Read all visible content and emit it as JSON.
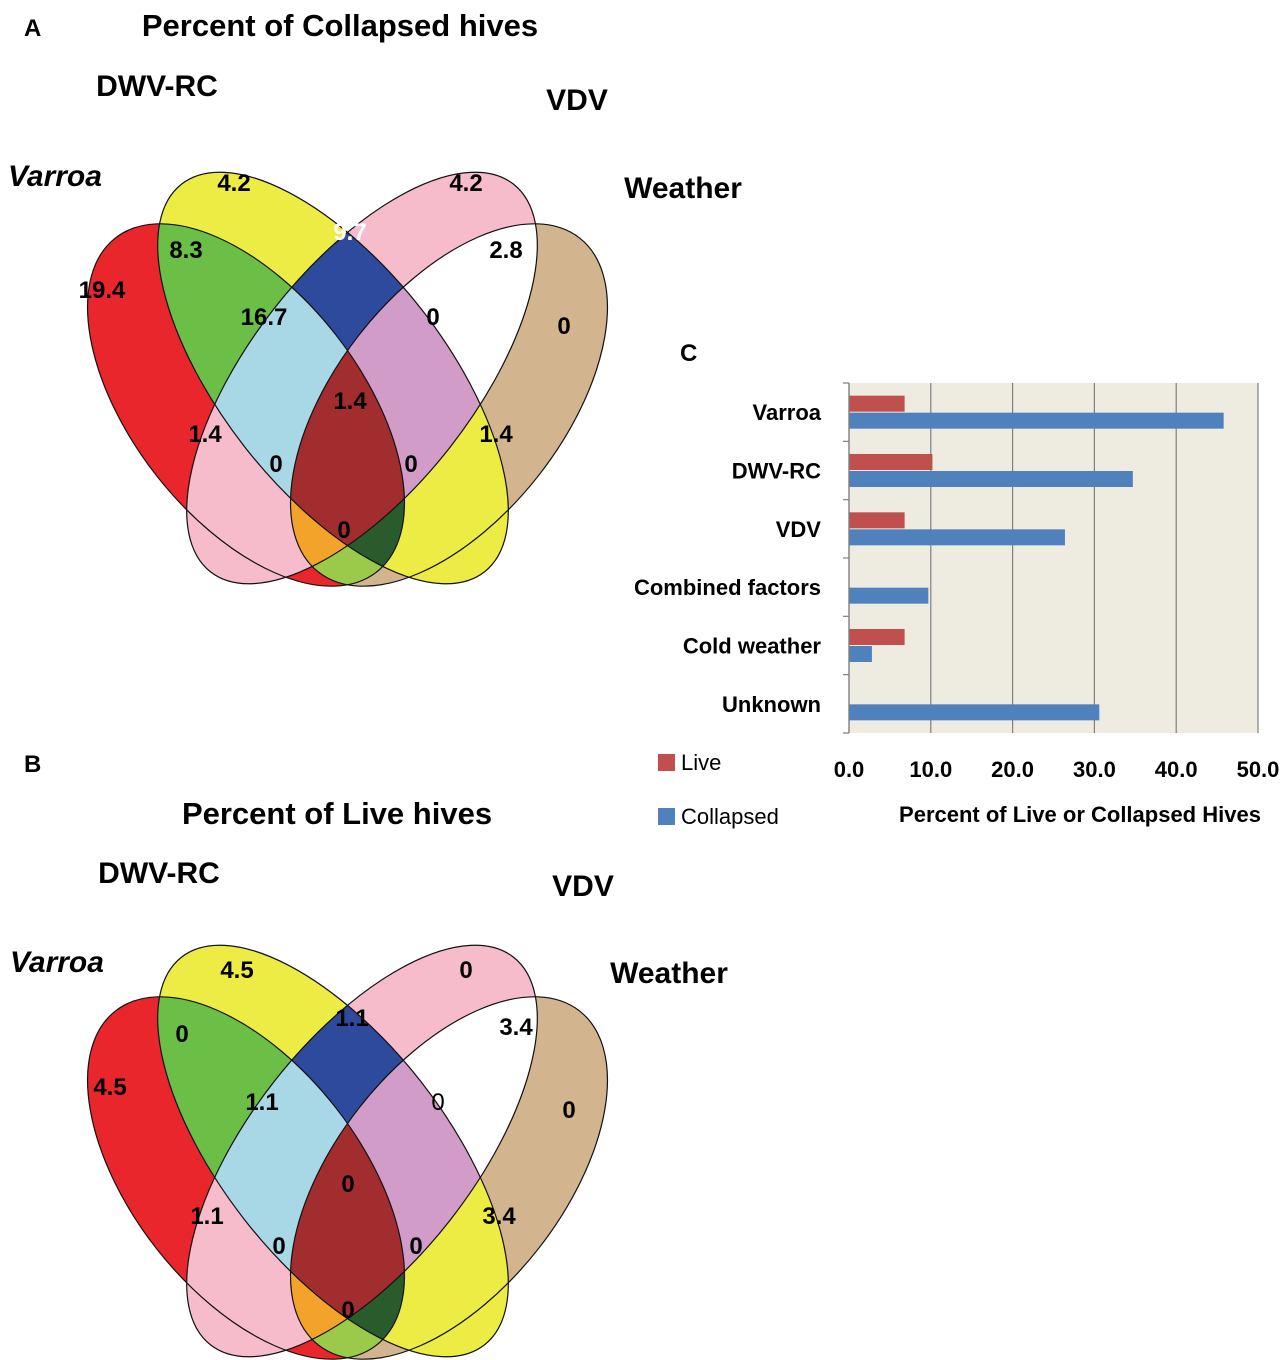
{
  "panels": {
    "a": {
      "letter": "A",
      "title": "Percent of Collapsed hives",
      "sets": [
        "Varroa",
        "DWV-RC",
        "VDV",
        "Weather"
      ],
      "values": {
        "varroa_only": "19.4",
        "dwv_only": "4.2",
        "vdv_only": "4.2",
        "weather_only": "0",
        "varroa_dwv": "8.3",
        "dwv_vdv": "9.7",
        "vdv_weather": "2.8",
        "varroa_dwv_vdv": "16.7",
        "dwv_vdv_weather": "0",
        "all_four": "1.4",
        "varroa_dwv_weather": "1.4",
        "varroa_vdv_weather": "1.4",
        "varroa_weather_dwv_side": "0",
        "varroa_weather_vdv_side": "0",
        "varroa_weather": "0"
      }
    },
    "b": {
      "letter": "B",
      "title": "Percent of Live hives",
      "sets": [
        "Varroa",
        "DWV-RC",
        "VDV",
        "Weather"
      ],
      "values": {
        "varroa_only": "4.5",
        "dwv_only": "4.5",
        "vdv_only": "0",
        "weather_only": "0",
        "varroa_dwv": "0",
        "dwv_vdv": "1.1",
        "vdv_weather": "3.4",
        "varroa_dwv_vdv": "1.1",
        "dwv_vdv_weather": "0",
        "all_four": "0",
        "varroa_dwv_weather": "1.1",
        "varroa_vdv_weather": "3.4",
        "varroa_weather_dwv_side": "0",
        "varroa_weather_vdv_side": "0",
        "varroa_weather": "0"
      }
    },
    "c": {
      "letter": "C"
    }
  },
  "colors": {
    "varroa": "#e8262b",
    "dwv": "#ecec45",
    "vdv": "#f6bccb",
    "weather": "#d2b48e",
    "varroa_dwv": "#6bbf46",
    "dwv_vdv": "#2e4a9c",
    "vdv_weather": "#ffffff",
    "varroa_dwv_vdv": "#a8d7e6",
    "dwv_vdv_weather": "#d29cc8",
    "all_four": "#a22d2f",
    "varroa_dwv_weather": "#2a5b2c",
    "varroa_vdv_weather": "#f4a32a",
    "varroa_weather_dwv_side": "#bebebe",
    "varroa_weather_vdv_side": "#7c4a9f",
    "varroa_weather": "#9bc94a",
    "live_bar": "#c0504d",
    "collapsed_bar": "#4f81bd",
    "plot_bg": "#eeebe1"
  },
  "chart_data": {
    "type": "bar",
    "orientation": "horizontal",
    "categories": [
      "Varroa",
      "DWV-RC",
      "VDV",
      "Combined factors",
      "Cold weather",
      "Unknown"
    ],
    "series": [
      {
        "name": "Live",
        "values": [
          6.8,
          10.2,
          6.8,
          0,
          6.8,
          0
        ]
      },
      {
        "name": "Collapsed",
        "values": [
          45.8,
          34.7,
          26.4,
          9.7,
          2.8,
          30.6
        ]
      }
    ],
    "xlabel": "Percent of Live or Collapsed Hives",
    "xlim": [
      0,
      50
    ],
    "xticks": [
      "0.0",
      "10.0",
      "20.0",
      "30.0",
      "40.0",
      "50.0"
    ],
    "grid": true,
    "legend_position": "bottom-left"
  }
}
